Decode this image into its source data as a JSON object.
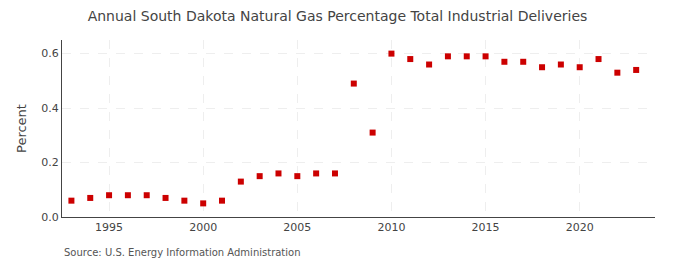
{
  "chart_data": {
    "type": "scatter",
    "title": "Annual South Dakota Natural Gas Percentage Total Industrial Deliveries",
    "y_label": "Percent",
    "annotations": [
      "Source: U.S. Energy Information Administration"
    ],
    "x": [
      1993,
      1994,
      1995,
      1996,
      1997,
      1998,
      1999,
      2000,
      2001,
      2002,
      2003,
      2004,
      2005,
      2006,
      2007,
      2008,
      2009,
      2010,
      2011,
      2012,
      2013,
      2014,
      2015,
      2016,
      2017,
      2018,
      2019,
      2020,
      2021,
      2022,
      2023
    ],
    "values": [
      0.06,
      0.07,
      0.08,
      0.08,
      0.08,
      0.07,
      0.06,
      0.05,
      0.06,
      0.13,
      0.15,
      0.16,
      0.15,
      0.16,
      0.16,
      0.49,
      0.31,
      0.6,
      0.58,
      0.56,
      0.59,
      0.59,
      0.59,
      0.57,
      0.57,
      0.55,
      0.56,
      0.55,
      0.58,
      0.53,
      0.54
    ],
    "color": "#cc0000",
    "marker": "square",
    "xlim": [
      1992.5,
      2024
    ],
    "ylim": [
      0.0,
      0.65
    ],
    "xticks": [
      1995,
      2000,
      2005,
      2010,
      2015,
      2020
    ],
    "yticks": [
      {
        "value": 0.0,
        "label": "0.0"
      },
      0.2,
      0.4,
      0.6
    ],
    "grid": true
  }
}
